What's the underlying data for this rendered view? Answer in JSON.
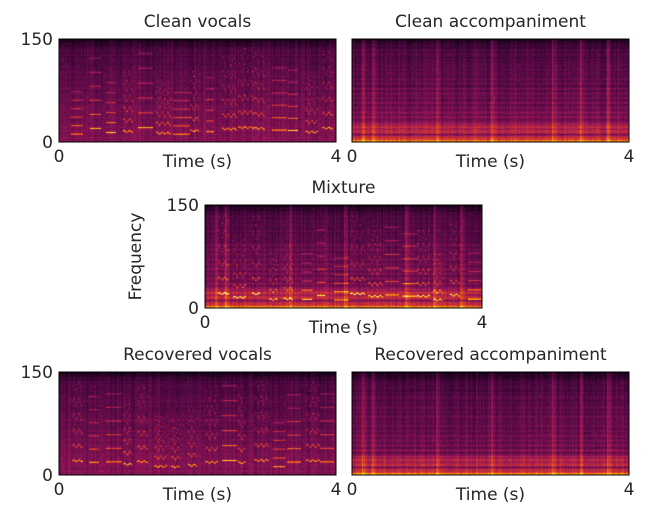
{
  "chart_data": [
    {
      "type": "heatmap",
      "title": "Clean vocals",
      "xlabel": "Time (s)",
      "ylabel": "",
      "xlim": [
        0,
        4
      ],
      "ylim": [
        0,
        150
      ],
      "xticks": [
        "0",
        "4"
      ],
      "yticks": [
        "0",
        "150"
      ],
      "colormap": "hot",
      "content": "vocals",
      "grid": false
    },
    {
      "type": "heatmap",
      "title": "Clean accompaniment",
      "xlabel": "Time (s)",
      "ylabel": "",
      "xlim": [
        0,
        4
      ],
      "ylim": [
        0,
        150
      ],
      "xticks": [
        "0",
        "4"
      ],
      "yticks": [],
      "colormap": "hot",
      "content": "accompaniment",
      "grid": false
    },
    {
      "type": "heatmap",
      "title": "Mixture",
      "xlabel": "Time (s)",
      "ylabel": "Frequency",
      "xlim": [
        0,
        4
      ],
      "ylim": [
        0,
        150
      ],
      "xticks": [
        "0",
        "4"
      ],
      "yticks": [
        "0",
        "150"
      ],
      "colormap": "hot",
      "content": "mixture",
      "grid": false
    },
    {
      "type": "heatmap",
      "title": "Recovered vocals",
      "xlabel": "Time (s)",
      "ylabel": "",
      "xlim": [
        0,
        4
      ],
      "ylim": [
        0,
        150
      ],
      "xticks": [
        "0",
        "4"
      ],
      "yticks": [
        "0",
        "150"
      ],
      "colormap": "hot",
      "content": "vocals",
      "grid": false
    },
    {
      "type": "heatmap",
      "title": "Recovered accompaniment",
      "xlabel": "Time (s)",
      "ylabel": "",
      "xlim": [
        0,
        4
      ],
      "ylim": [
        0,
        150
      ],
      "xticks": [
        "0",
        "4"
      ],
      "yticks": [],
      "colormap": "hot",
      "content": "accompaniment",
      "grid": false
    }
  ]
}
